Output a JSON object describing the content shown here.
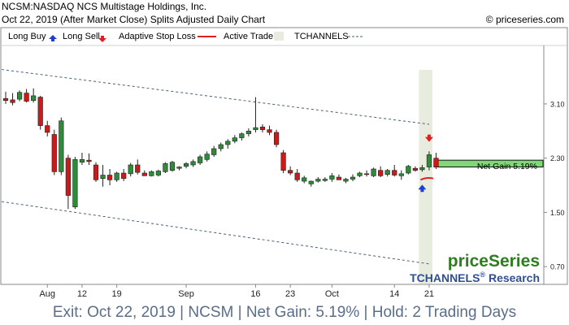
{
  "header": {
    "title": "NCSM:NASDAQ NCS Multistage Holdings, Inc.",
    "subtitle": "Oct 22, 2019 (After Market Close)  Splits Adjusted Daily Chart",
    "copyright": "© priceseries.com"
  },
  "legend": {
    "long_buy": "Long Buy",
    "long_sell": "Long Sell",
    "adaptive_stop": "Adaptive Stop Loss",
    "active_trade": "Active Trade",
    "tchannels": "TCHANNELS"
  },
  "colors": {
    "up": "#2e8b3a",
    "down": "#cc1a1a",
    "buy_arrow": "#1f3fd0",
    "sell_arrow": "#e02020",
    "stop_line": "#e02020",
    "active_band": "#e8ecdf",
    "channel": "#4a5e7a",
    "gain_box": "#7ed87a"
  },
  "brand": {
    "name": "priceSeries",
    "tagline_main": "TCHANNELS",
    "tagline_mark": "®",
    "tagline_rest": " Research"
  },
  "net_gain_label": "Net Gain 5.19%",
  "footer_text": "Exit: Oct 22, 2019 | NCSM | Net Gain: 5.19% | Hold: 2 Trading Days",
  "chart_data": {
    "type": "candlestick",
    "y_ticks": [
      "3.10",
      "2.30",
      "1.50",
      "0.70"
    ],
    "y_tick_values": [
      3.1,
      2.3,
      1.5,
      0.7
    ],
    "ylim": [
      0.45,
      3.95
    ],
    "x_ticks": [
      {
        "label": "Aug",
        "index": 6
      },
      {
        "label": "12",
        "index": 11
      },
      {
        "label": "19",
        "index": 16
      },
      {
        "label": "Sep",
        "index": 26
      },
      {
        "label": "16",
        "index": 36
      },
      {
        "label": "23",
        "index": 41
      },
      {
        "label": "Oct",
        "index": 47
      },
      {
        "label": "14",
        "index": 56
      },
      {
        "label": "21",
        "index": 61
      }
    ],
    "candles": [
      {
        "o": 3.18,
        "h": 3.28,
        "l": 3.1,
        "c": 3.15
      },
      {
        "o": 3.16,
        "h": 3.26,
        "l": 3.08,
        "c": 3.12
      },
      {
        "o": 3.17,
        "h": 3.3,
        "l": 3.14,
        "c": 3.27
      },
      {
        "o": 3.26,
        "h": 3.32,
        "l": 3.12,
        "c": 3.14
      },
      {
        "o": 3.15,
        "h": 3.33,
        "l": 3.12,
        "c": 3.22
      },
      {
        "o": 3.2,
        "h": 3.22,
        "l": 2.72,
        "c": 2.78
      },
      {
        "o": 2.78,
        "h": 2.85,
        "l": 2.62,
        "c": 2.68
      },
      {
        "o": 2.65,
        "h": 2.72,
        "l": 2.05,
        "c": 2.1
      },
      {
        "o": 2.1,
        "h": 2.9,
        "l": 2.05,
        "c": 2.85
      },
      {
        "o": 2.3,
        "h": 2.35,
        "l": 1.55,
        "c": 1.75
      },
      {
        "o": 1.58,
        "h": 2.32,
        "l": 1.55,
        "c": 2.28
      },
      {
        "o": 2.24,
        "h": 2.38,
        "l": 2.2,
        "c": 2.28
      },
      {
        "o": 2.27,
        "h": 2.37,
        "l": 2.2,
        "c": 2.25
      },
      {
        "o": 2.2,
        "h": 2.24,
        "l": 1.95,
        "c": 1.98
      },
      {
        "o": 2.0,
        "h": 2.2,
        "l": 1.88,
        "c": 2.05
      },
      {
        "o": 2.05,
        "h": 2.14,
        "l": 1.9,
        "c": 1.98
      },
      {
        "o": 1.98,
        "h": 2.1,
        "l": 1.95,
        "c": 2.08
      },
      {
        "o": 2.08,
        "h": 2.14,
        "l": 1.96,
        "c": 2.0
      },
      {
        "o": 2.07,
        "h": 2.23,
        "l": 2.03,
        "c": 2.2
      },
      {
        "o": 2.2,
        "h": 2.28,
        "l": 2.06,
        "c": 2.09
      },
      {
        "o": 2.08,
        "h": 2.12,
        "l": 2.04,
        "c": 2.04
      },
      {
        "o": 2.04,
        "h": 2.12,
        "l": 2.03,
        "c": 2.1
      },
      {
        "o": 2.05,
        "h": 2.13,
        "l": 2.03,
        "c": 2.11
      },
      {
        "o": 2.1,
        "h": 2.24,
        "l": 2.08,
        "c": 2.22
      },
      {
        "o": 2.12,
        "h": 2.26,
        "l": 2.1,
        "c": 2.24
      },
      {
        "o": 2.15,
        "h": 2.18,
        "l": 2.12,
        "c": 2.17
      },
      {
        "o": 2.18,
        "h": 2.24,
        "l": 2.15,
        "c": 2.22
      },
      {
        "o": 2.2,
        "h": 2.28,
        "l": 2.17,
        "c": 2.25
      },
      {
        "o": 2.23,
        "h": 2.35,
        "l": 2.2,
        "c": 2.32
      },
      {
        "o": 2.28,
        "h": 2.4,
        "l": 2.25,
        "c": 2.36
      },
      {
        "o": 2.35,
        "h": 2.48,
        "l": 2.32,
        "c": 2.44
      },
      {
        "o": 2.44,
        "h": 2.53,
        "l": 2.4,
        "c": 2.5
      },
      {
        "o": 2.5,
        "h": 2.58,
        "l": 2.44,
        "c": 2.55
      },
      {
        "o": 2.55,
        "h": 2.64,
        "l": 2.52,
        "c": 2.6
      },
      {
        "o": 2.6,
        "h": 2.68,
        "l": 2.56,
        "c": 2.66
      },
      {
        "o": 2.66,
        "h": 2.74,
        "l": 2.62,
        "c": 2.7
      },
      {
        "o": 2.72,
        "h": 3.2,
        "l": 2.68,
        "c": 2.75
      },
      {
        "o": 2.76,
        "h": 2.8,
        "l": 2.68,
        "c": 2.72
      },
      {
        "o": 2.72,
        "h": 2.78,
        "l": 2.64,
        "c": 2.68
      },
      {
        "o": 2.68,
        "h": 2.72,
        "l": 2.46,
        "c": 2.5
      },
      {
        "o": 2.38,
        "h": 2.42,
        "l": 2.08,
        "c": 2.12
      },
      {
        "o": 2.12,
        "h": 2.18,
        "l": 2.05,
        "c": 2.08
      },
      {
        "o": 2.08,
        "h": 2.14,
        "l": 1.95,
        "c": 1.98
      },
      {
        "o": 1.96,
        "h": 2.04,
        "l": 1.93,
        "c": 2.01
      },
      {
        "o": 1.92,
        "h": 1.97,
        "l": 1.88,
        "c": 1.96
      },
      {
        "o": 1.96,
        "h": 2.02,
        "l": 1.94,
        "c": 1.99
      },
      {
        "o": 1.97,
        "h": 2.02,
        "l": 1.95,
        "c": 1.99
      },
      {
        "o": 1.99,
        "h": 2.08,
        "l": 1.95,
        "c": 2.04
      },
      {
        "o": 2.02,
        "h": 2.06,
        "l": 1.98,
        "c": 1.98
      },
      {
        "o": 1.96,
        "h": 2.01,
        "l": 1.93,
        "c": 1.99
      },
      {
        "o": 1.99,
        "h": 2.06,
        "l": 1.96,
        "c": 2.02
      },
      {
        "o": 2.04,
        "h": 2.1,
        "l": 2.02,
        "c": 2.08
      },
      {
        "o": 2.07,
        "h": 2.12,
        "l": 2.03,
        "c": 2.06
      },
      {
        "o": 2.04,
        "h": 2.16,
        "l": 2.02,
        "c": 2.14
      },
      {
        "o": 2.12,
        "h": 2.18,
        "l": 2.02,
        "c": 2.04
      },
      {
        "o": 2.06,
        "h": 2.14,
        "l": 2.03,
        "c": 2.12
      },
      {
        "o": 2.12,
        "h": 2.2,
        "l": 2.03,
        "c": 2.05
      },
      {
        "o": 2.04,
        "h": 2.12,
        "l": 1.98,
        "c": 2.07
      },
      {
        "o": 2.08,
        "h": 2.2,
        "l": 2.06,
        "c": 2.18
      },
      {
        "o": 2.15,
        "h": 2.18,
        "l": 2.1,
        "c": 2.12
      },
      {
        "o": 2.13,
        "h": 2.2,
        "l": 2.1,
        "c": 2.16
      },
      {
        "o": 2.17,
        "h": 2.4,
        "l": 2.12,
        "c": 2.35
      },
      {
        "o": 2.3,
        "h": 2.38,
        "l": 2.14,
        "c": 2.17
      }
    ],
    "channel_upper": {
      "start": [
        0,
        3.6
      ],
      "end": [
        61,
        2.8
      ]
    },
    "channel_lower": {
      "start": [
        0,
        1.65
      ],
      "end": [
        61,
        0.74
      ]
    },
    "active_trade": {
      "start_index": 60,
      "end_index": 61
    },
    "buy_marker": {
      "index": 60,
      "price": 1.85
    },
    "sell_marker": {
      "index": 61,
      "price": 2.6
    },
    "stop_loss": [
      {
        "index": 60,
        "price": 1.98
      },
      {
        "index": 61,
        "price": 2.0
      }
    ],
    "net_gain_box": {
      "from": 2.17,
      "to": 2.27
    }
  }
}
